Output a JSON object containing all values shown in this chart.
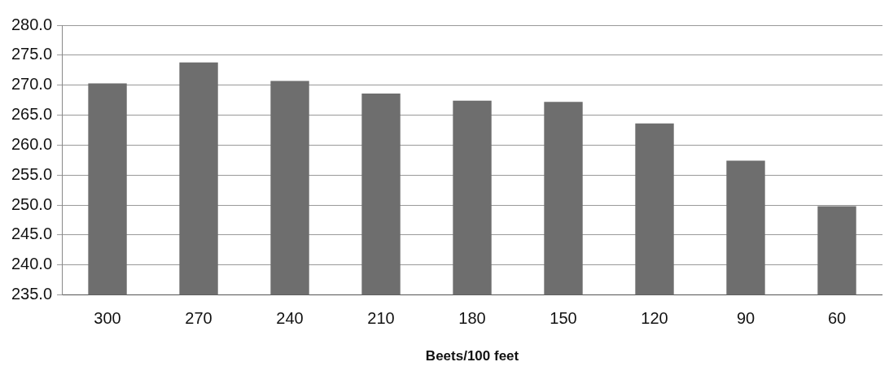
{
  "chart_data": {
    "type": "bar",
    "xlabel": "Beets/100 feet",
    "categories": [
      "300",
      "270",
      "240",
      "210",
      "180",
      "150",
      "120",
      "90",
      "60"
    ],
    "values": [
      270.3,
      273.8,
      270.7,
      268.6,
      267.4,
      267.2,
      263.6,
      257.4,
      249.8
    ],
    "color": "#6e6e6e",
    "ylim": [
      235,
      280
    ],
    "yticks": [
      {
        "value": 235,
        "label": "235.0"
      },
      {
        "value": 240,
        "label": "240.0"
      },
      {
        "value": 245,
        "label": "245.0"
      },
      {
        "value": 250,
        "label": "250.0"
      },
      {
        "value": 255,
        "label": "255.0"
      },
      {
        "value": 260,
        "label": "260.0"
      },
      {
        "value": 265,
        "label": "265.0"
      },
      {
        "value": 270,
        "label": "270.0"
      },
      {
        "value": 275,
        "label": "275.0"
      },
      {
        "value": 280,
        "label": "280.0"
      }
    ],
    "grid": "y",
    "legend": false
  }
}
